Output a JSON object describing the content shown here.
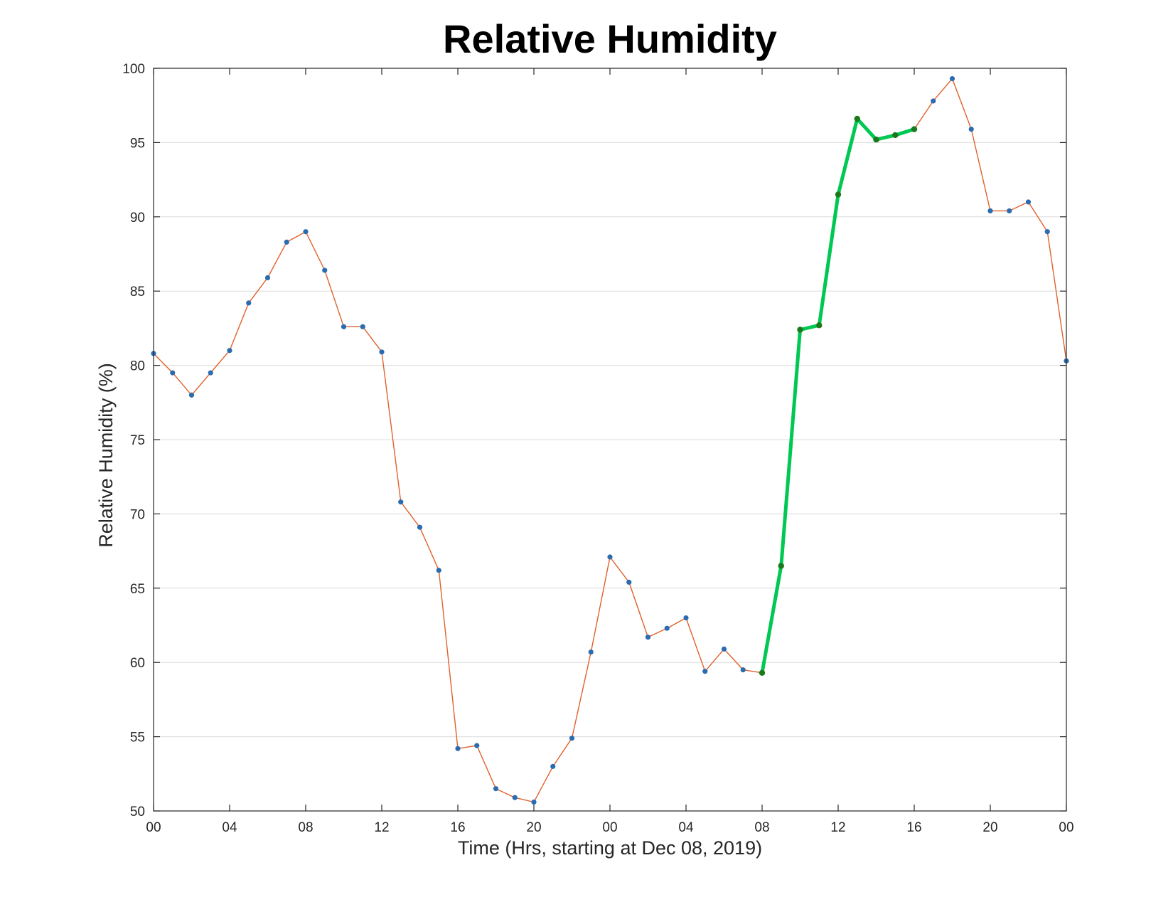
{
  "chart_data": {
    "type": "line",
    "title": "Relative Humidity",
    "xlabel": "Time (Hrs, starting at Dec 08, 2019)",
    "ylabel": "Relative Humidity (%)",
    "xlim": [
      0,
      48
    ],
    "ylim": [
      50,
      100
    ],
    "grid": true,
    "x_ticks": [
      0,
      4,
      8,
      12,
      16,
      20,
      24,
      28,
      32,
      36,
      40,
      44,
      48
    ],
    "x_tick_labels": [
      "00",
      "04",
      "08",
      "12",
      "16",
      "20",
      "00",
      "04",
      "08",
      "12",
      "16",
      "20",
      "00"
    ],
    "y_ticks": [
      50,
      55,
      60,
      65,
      70,
      75,
      80,
      85,
      90,
      95,
      100
    ],
    "y_tick_labels": [
      "50",
      "55",
      "60",
      "65",
      "70",
      "75",
      "80",
      "85",
      "90",
      "95",
      "100"
    ],
    "colors": {
      "line": "#e0612c",
      "marker": "#2b6cb0",
      "highlight_line": "#00c853",
      "highlight_marker": "#1b7a1b"
    },
    "series": [
      {
        "x": [
          0,
          1,
          2,
          3,
          4,
          5,
          6,
          7,
          8,
          9,
          10,
          11,
          12,
          13,
          14,
          15,
          16,
          17,
          18,
          19,
          20,
          21,
          22,
          23,
          24,
          25,
          26,
          27,
          28,
          29,
          30,
          31,
          32,
          33,
          34,
          35,
          36,
          37,
          38,
          39,
          40,
          41,
          42,
          43,
          44,
          45,
          46,
          47,
          48
        ],
        "values": [
          80.8,
          79.5,
          78.0,
          79.5,
          81.0,
          84.2,
          85.9,
          88.3,
          89.0,
          86.4,
          82.6,
          82.6,
          80.9,
          70.8,
          69.1,
          66.2,
          54.2,
          54.4,
          51.5,
          50.9,
          50.6,
          53.0,
          54.9,
          60.7,
          67.1,
          65.4,
          61.7,
          62.3,
          63.0,
          59.4,
          60.9,
          59.5,
          59.3,
          66.5,
          82.4,
          82.7,
          91.5,
          96.6,
          95.2,
          95.5,
          95.9,
          97.8,
          99.3,
          95.9,
          90.4,
          90.4,
          91.0,
          89.0,
          80.3
        ]
      },
      {
        "x": [
          32,
          33,
          34,
          35,
          36,
          37,
          38,
          39,
          40
        ],
        "values": [
          59.3,
          66.5,
          82.4,
          82.7,
          91.5,
          96.6,
          95.2,
          95.5,
          95.9
        ]
      }
    ]
  }
}
